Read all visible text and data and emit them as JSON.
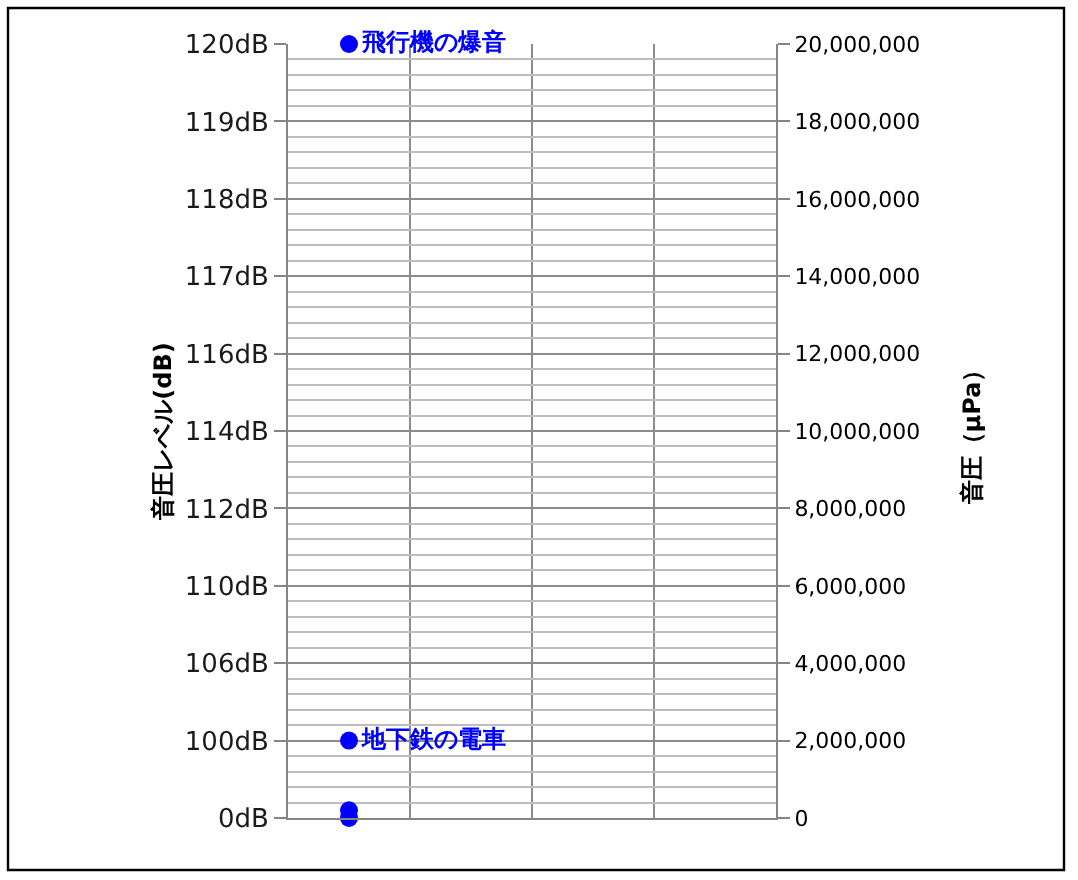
{
  "chart_data": {
    "type": "scatter",
    "ylabel": "音圧（μPa）",
    "y2label": "音圧レベル(dB)",
    "categories": [
      null,
      null,
      null,
      null
    ],
    "series": [
      {
        "name": "飛行機の爆音",
        "color": "#0000ff",
        "values": [
          20000000,
          null,
          null,
          null
        ]
      },
      {
        "name": "地下鉄の電車",
        "color": "#0000ff",
        "values": [
          2000000,
          null,
          null,
          null
        ]
      },
      {
        "color": "#0000ff",
        "values": [
          200000,
          null,
          null,
          null
        ]
      },
      {
        "color": "#0000ff",
        "values": [
          0,
          null,
          null,
          null
        ]
      }
    ],
    "ylim": [
      0,
      20000000
    ],
    "yticks": [
      0,
      {
        "value": 400000,
        "label": null
      },
      {
        "value": 800000,
        "label": null
      },
      {
        "value": 1200000,
        "label": null
      },
      {
        "value": 1600000,
        "label": null
      },
      {
        "value": 2000000,
        "label": "2,000,000"
      },
      {
        "value": 2400000,
        "label": null
      },
      {
        "value": 2800000,
        "label": null
      },
      {
        "value": 3200000,
        "label": null
      },
      {
        "value": 3600000,
        "label": null
      },
      {
        "value": 4000000,
        "label": "4,000,000"
      },
      {
        "value": 4400000,
        "label": null
      },
      {
        "value": 4800000,
        "label": null
      },
      {
        "value": 5200000,
        "label": null
      },
      {
        "value": 5600000,
        "label": null
      },
      {
        "value": 6000000,
        "label": "6,000,000"
      },
      {
        "value": 6400000,
        "label": null
      },
      {
        "value": 6800000,
        "label": null
      },
      {
        "value": 7200000,
        "label": null
      },
      {
        "value": 7600000,
        "label": null
      },
      {
        "value": 8000000,
        "label": "8,000,000"
      },
      {
        "value": 8400000,
        "label": null
      },
      {
        "value": 8800000,
        "label": null
      },
      {
        "value": 9200000,
        "label": null
      },
      {
        "value": 9600000,
        "label": null
      },
      {
        "value": 10000000,
        "label": "10,000,000"
      },
      {
        "value": 10400000,
        "label": null
      },
      {
        "value": 10800000,
        "label": null
      },
      {
        "value": 11200000,
        "label": null
      },
      {
        "value": 11600000,
        "label": null
      },
      {
        "value": 12000000,
        "label": "12,000,000"
      },
      {
        "value": 12400000,
        "label": null
      },
      {
        "value": 12800000,
        "label": null
      },
      {
        "value": 13200000,
        "label": null
      },
      {
        "value": 13600000,
        "label": null
      },
      {
        "value": 14000000,
        "label": "14,000,000"
      },
      {
        "value": 14400000,
        "label": null
      },
      {
        "value": 14800000,
        "label": null
      },
      {
        "value": 15200000,
        "label": null
      },
      {
        "value": 15600000,
        "label": null
      },
      {
        "value": 16000000,
        "label": "16,000,000"
      },
      {
        "value": 16400000,
        "label": null
      },
      {
        "value": 16800000,
        "label": null
      },
      {
        "value": 17200000,
        "label": null
      },
      {
        "value": 17600000,
        "label": null
      },
      {
        "value": 18000000,
        "label": "18,000,000"
      },
      {
        "value": 18400000,
        "label": null
      },
      {
        "value": 18800000,
        "label": null
      },
      {
        "value": 19200000,
        "label": null
      },
      {
        "value": 19600000,
        "label": null
      },
      {
        "value": 20000000,
        "label": "20,000,000"
      }
    ],
    "y2_categories": [
      "120dB",
      "119dB",
      "118dB",
      "117dB",
      "116dB",
      "114dB",
      "112dB",
      "110dB",
      "106dB",
      "100dB",
      "0dB"
    ],
    "grid": true,
    "marker": "circle",
    "tick_labels": "y"
  }
}
